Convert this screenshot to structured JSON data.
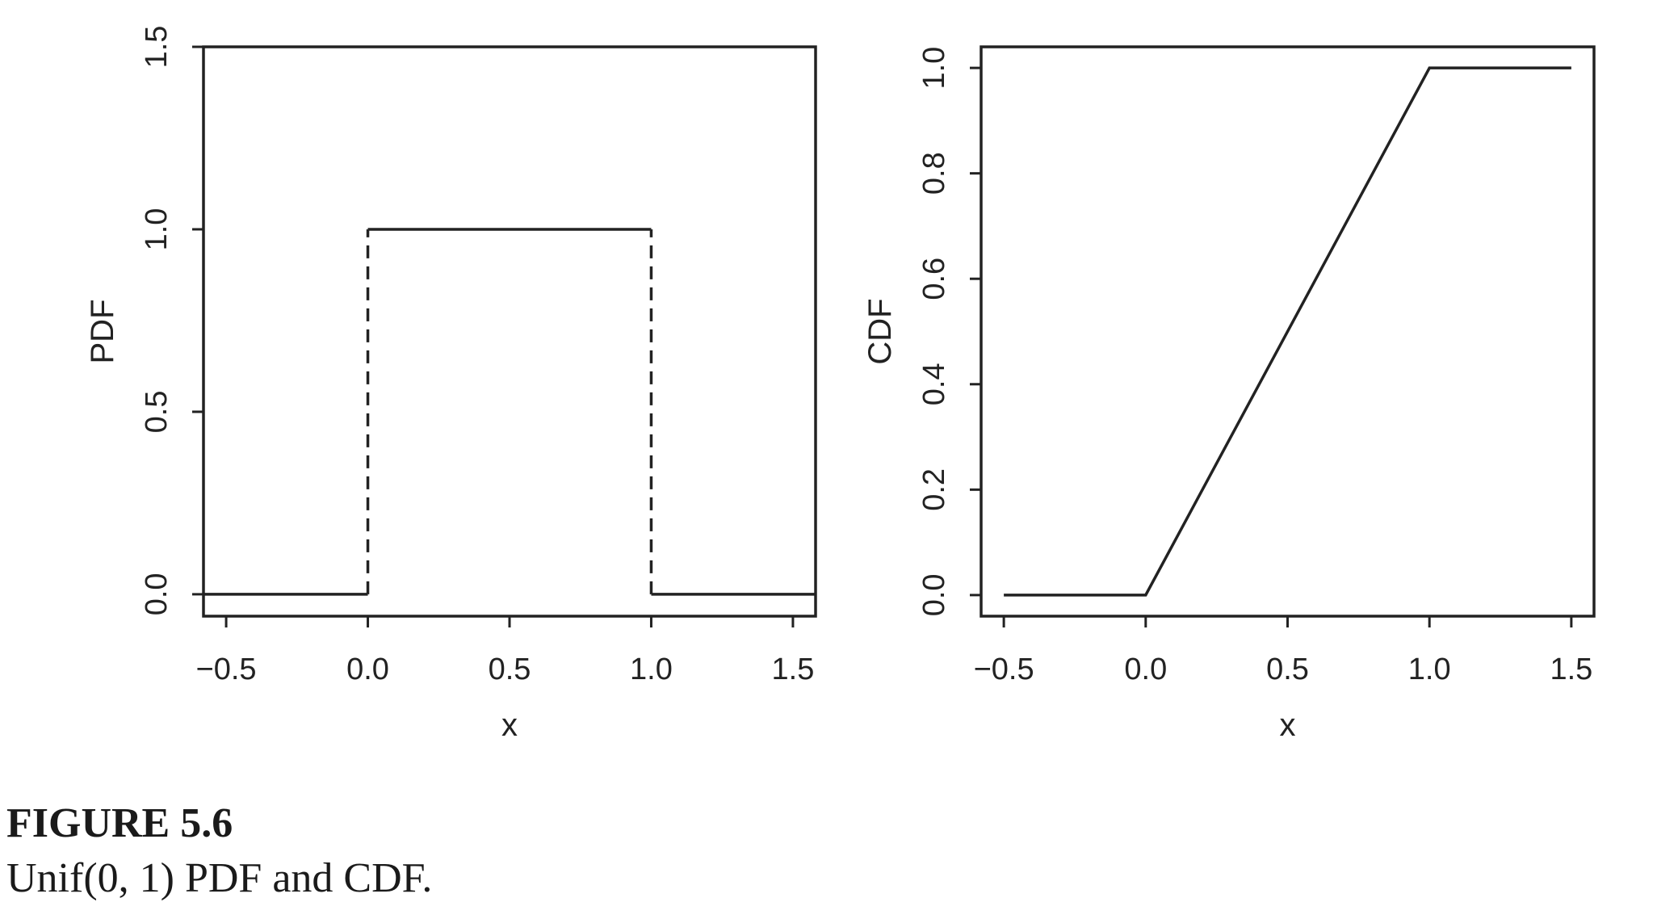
{
  "caption": {
    "label": "FIGURE 5.6",
    "text": "Unif(0, 1) PDF and CDF."
  },
  "colors": {
    "ink": "#222222",
    "background": "#ffffff"
  },
  "chart_data": [
    {
      "type": "line",
      "xlabel": "x",
      "ylabel": "PDF",
      "xlim": [
        -0.58,
        1.58
      ],
      "ylim": [
        -0.06,
        1.5
      ],
      "x_ticks": [
        "−0.5",
        "0.0",
        "0.5",
        "1.0",
        "1.5"
      ],
      "x_tick_values": [
        -0.5,
        0.0,
        0.5,
        1.0,
        1.5
      ],
      "y_ticks": [
        "0.0",
        "0.5",
        "1.0",
        "1.5"
      ],
      "y_tick_values": [
        0.0,
        0.5,
        1.0,
        1.5
      ],
      "grid": false,
      "series": [
        {
          "style": "solid",
          "x": [
            -0.58,
            0.0
          ],
          "y": [
            0.0,
            0.0
          ]
        },
        {
          "style": "solid",
          "x": [
            0.0,
            1.0
          ],
          "y": [
            1.0,
            1.0
          ]
        },
        {
          "style": "solid",
          "x": [
            1.0,
            1.58
          ],
          "y": [
            0.0,
            0.0
          ]
        },
        {
          "style": "dashed",
          "x": [
            0.0,
            0.0
          ],
          "y": [
            0.0,
            1.0
          ]
        },
        {
          "style": "dashed",
          "x": [
            1.0,
            1.0
          ],
          "y": [
            0.0,
            1.0
          ]
        }
      ]
    },
    {
      "type": "line",
      "xlabel": "x",
      "ylabel": "CDF",
      "xlim": [
        -0.58,
        1.58
      ],
      "ylim": [
        -0.04,
        1.04
      ],
      "x_ticks": [
        "−0.5",
        "0.0",
        "0.5",
        "1.0",
        "1.5"
      ],
      "x_tick_values": [
        -0.5,
        0.0,
        0.5,
        1.0,
        1.5
      ],
      "y_ticks": [
        "0.0",
        "0.2",
        "0.4",
        "0.6",
        "0.8",
        "1.0"
      ],
      "y_tick_values": [
        0.0,
        0.2,
        0.4,
        0.6,
        0.8,
        1.0
      ],
      "grid": false,
      "series": [
        {
          "style": "solid",
          "x": [
            -0.5,
            0.0,
            1.0,
            1.5
          ],
          "y": [
            0.0,
            0.0,
            1.0,
            1.0
          ]
        }
      ]
    }
  ]
}
